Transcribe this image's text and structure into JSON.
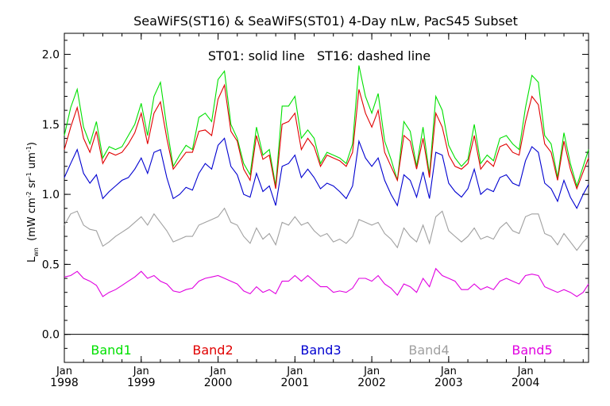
{
  "chart_data": {
    "type": "line",
    "title": "SeaWiFS(ST16) & SeaWiFS(ST01) 4-Day nLw, PacS45 Subset",
    "annotation": "ST01: solid line   ST16: dashed line",
    "ylabel_main": "L",
    "ylabel_sub": "wn",
    "ylabel_units": "(mW cm",
    "ylabel_units_exp1": "-2",
    "ylabel_units_mid1": " sr",
    "ylabel_units_exp2": "-1",
    "ylabel_units_mid2": " um",
    "ylabel_units_exp3": "-1",
    "ylabel_units_end": ")",
    "ylim": [
      -0.2,
      2.15
    ],
    "xlim": [
      1998.0,
      2004.82
    ],
    "yticks": [
      0.0,
      0.5,
      1.0,
      1.5,
      2.0
    ],
    "ytick_labels": [
      "0.0",
      "0.5",
      "1.0",
      "1.5",
      "2.0"
    ],
    "xticks": [
      1998,
      1999,
      2000,
      2001,
      2002,
      2003,
      2004
    ],
    "xtick_month_label": "Jan",
    "xtick_year_labels": [
      "1998",
      "1999",
      "2000",
      "2001",
      "2002",
      "2003",
      "2004"
    ],
    "zero_line": true,
    "legend_placement": "bottom",
    "x": [
      1998.0,
      1998.083,
      1998.167,
      1998.25,
      1998.333,
      1998.417,
      1998.5,
      1998.583,
      1998.667,
      1998.75,
      1998.833,
      1998.917,
      1999.0,
      1999.083,
      1999.167,
      1999.25,
      1999.333,
      1999.417,
      1999.5,
      1999.583,
      1999.667,
      1999.75,
      1999.833,
      1999.917,
      2000.0,
      2000.083,
      2000.167,
      2000.25,
      2000.333,
      2000.417,
      2000.5,
      2000.583,
      2000.667,
      2000.75,
      2000.833,
      2000.917,
      2001.0,
      2001.083,
      2001.167,
      2001.25,
      2001.333,
      2001.417,
      2001.5,
      2001.583,
      2001.667,
      2001.75,
      2001.833,
      2001.917,
      2002.0,
      2002.083,
      2002.167,
      2002.25,
      2002.333,
      2002.417,
      2002.5,
      2002.583,
      2002.667,
      2002.75,
      2002.833,
      2002.917,
      2003.0,
      2003.083,
      2003.167,
      2003.25,
      2003.333,
      2003.417,
      2003.5,
      2003.583,
      2003.667,
      2003.75,
      2003.833,
      2003.917,
      2004.0,
      2004.083,
      2004.167,
      2004.25,
      2004.333,
      2004.417,
      2004.5,
      2004.583,
      2004.667,
      2004.75,
      2004.82
    ],
    "series": [
      {
        "name": "Band1",
        "color": "#00e000",
        "values": [
          1.42,
          1.62,
          1.75,
          1.48,
          1.36,
          1.52,
          1.26,
          1.34,
          1.32,
          1.34,
          1.42,
          1.5,
          1.65,
          1.42,
          1.7,
          1.8,
          1.48,
          1.2,
          1.28,
          1.35,
          1.32,
          1.55,
          1.58,
          1.52,
          1.82,
          1.88,
          1.5,
          1.4,
          1.22,
          1.14,
          1.48,
          1.28,
          1.32,
          1.06,
          1.63,
          1.63,
          1.7,
          1.4,
          1.46,
          1.4,
          1.22,
          1.3,
          1.28,
          1.26,
          1.22,
          1.36,
          1.92,
          1.7,
          1.58,
          1.72,
          1.38,
          1.25,
          1.1,
          1.52,
          1.45,
          1.2,
          1.48,
          1.14,
          1.7,
          1.6,
          1.35,
          1.26,
          1.2,
          1.25,
          1.5,
          1.22,
          1.28,
          1.24,
          1.4,
          1.42,
          1.36,
          1.32,
          1.62,
          1.85,
          1.8,
          1.42,
          1.36,
          1.12,
          1.44,
          1.22,
          1.06,
          1.2,
          1.32
        ]
      },
      {
        "name": "Band2",
        "color": "#e00000",
        "values": [
          1.32,
          1.48,
          1.62,
          1.4,
          1.3,
          1.45,
          1.22,
          1.3,
          1.28,
          1.3,
          1.36,
          1.44,
          1.58,
          1.36,
          1.58,
          1.66,
          1.4,
          1.18,
          1.24,
          1.3,
          1.3,
          1.45,
          1.46,
          1.42,
          1.68,
          1.78,
          1.45,
          1.38,
          1.18,
          1.1,
          1.42,
          1.25,
          1.28,
          1.04,
          1.5,
          1.52,
          1.58,
          1.32,
          1.4,
          1.34,
          1.2,
          1.28,
          1.26,
          1.24,
          1.2,
          1.3,
          1.75,
          1.58,
          1.48,
          1.6,
          1.3,
          1.2,
          1.1,
          1.42,
          1.38,
          1.18,
          1.4,
          1.12,
          1.58,
          1.48,
          1.28,
          1.2,
          1.18,
          1.22,
          1.42,
          1.18,
          1.24,
          1.2,
          1.34,
          1.36,
          1.3,
          1.28,
          1.52,
          1.7,
          1.64,
          1.36,
          1.3,
          1.1,
          1.38,
          1.18,
          1.04,
          1.16,
          1.26
        ]
      },
      {
        "name": "Band3",
        "color": "#0000d0",
        "values": [
          1.12,
          1.22,
          1.32,
          1.15,
          1.08,
          1.14,
          0.97,
          1.02,
          1.06,
          1.1,
          1.12,
          1.18,
          1.26,
          1.15,
          1.3,
          1.32,
          1.12,
          0.97,
          1.0,
          1.05,
          1.03,
          1.15,
          1.22,
          1.18,
          1.35,
          1.4,
          1.2,
          1.14,
          1.0,
          0.98,
          1.15,
          1.02,
          1.06,
          0.92,
          1.2,
          1.22,
          1.28,
          1.12,
          1.18,
          1.12,
          1.04,
          1.08,
          1.06,
          1.02,
          0.97,
          1.06,
          1.38,
          1.26,
          1.2,
          1.26,
          1.1,
          1.0,
          0.92,
          1.14,
          1.1,
          0.98,
          1.16,
          0.97,
          1.3,
          1.28,
          1.08,
          1.02,
          0.98,
          1.04,
          1.18,
          1.0,
          1.04,
          1.02,
          1.12,
          1.14,
          1.08,
          1.06,
          1.24,
          1.34,
          1.3,
          1.08,
          1.04,
          0.95,
          1.1,
          0.98,
          0.9,
          1.0,
          1.07
        ]
      },
      {
        "name": "Band4",
        "color": "#a0a0a0",
        "values": [
          0.78,
          0.86,
          0.88,
          0.78,
          0.75,
          0.74,
          0.63,
          0.66,
          0.7,
          0.73,
          0.76,
          0.8,
          0.84,
          0.78,
          0.86,
          0.8,
          0.74,
          0.66,
          0.68,
          0.7,
          0.7,
          0.78,
          0.8,
          0.82,
          0.84,
          0.9,
          0.8,
          0.78,
          0.7,
          0.65,
          0.76,
          0.68,
          0.72,
          0.64,
          0.8,
          0.78,
          0.84,
          0.78,
          0.8,
          0.74,
          0.7,
          0.72,
          0.66,
          0.68,
          0.65,
          0.7,
          0.82,
          0.8,
          0.78,
          0.8,
          0.72,
          0.68,
          0.62,
          0.76,
          0.7,
          0.66,
          0.78,
          0.65,
          0.84,
          0.88,
          0.74,
          0.7,
          0.66,
          0.7,
          0.76,
          0.68,
          0.7,
          0.68,
          0.76,
          0.8,
          0.74,
          0.72,
          0.84,
          0.86,
          0.86,
          0.72,
          0.7,
          0.64,
          0.72,
          0.66,
          0.6,
          0.66,
          0.7
        ]
      },
      {
        "name": "Band5",
        "color": "#e000e0",
        "values": [
          0.41,
          0.42,
          0.45,
          0.4,
          0.38,
          0.35,
          0.27,
          0.3,
          0.32,
          0.35,
          0.38,
          0.41,
          0.45,
          0.4,
          0.42,
          0.38,
          0.36,
          0.31,
          0.3,
          0.32,
          0.33,
          0.38,
          0.4,
          0.41,
          0.42,
          0.4,
          0.38,
          0.36,
          0.31,
          0.29,
          0.34,
          0.3,
          0.32,
          0.29,
          0.38,
          0.38,
          0.42,
          0.38,
          0.42,
          0.38,
          0.34,
          0.34,
          0.3,
          0.31,
          0.3,
          0.33,
          0.4,
          0.4,
          0.38,
          0.42,
          0.36,
          0.33,
          0.28,
          0.36,
          0.34,
          0.3,
          0.4,
          0.34,
          0.47,
          0.42,
          0.4,
          0.38,
          0.32,
          0.32,
          0.36,
          0.32,
          0.34,
          0.32,
          0.38,
          0.4,
          0.38,
          0.36,
          0.42,
          0.43,
          0.42,
          0.34,
          0.32,
          0.3,
          0.32,
          0.3,
          0.27,
          0.3,
          0.36
        ]
      }
    ]
  }
}
